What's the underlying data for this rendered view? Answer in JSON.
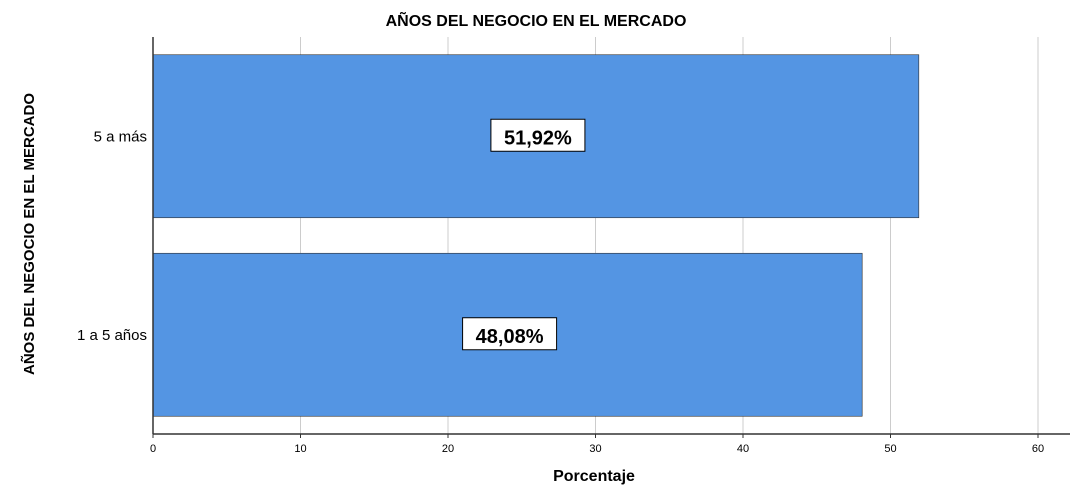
{
  "chart_data": {
    "type": "bar",
    "orientation": "horizontal",
    "title": "AÑOS DEL NEGOCIO EN EL MERCADO",
    "xlabel": "Porcentaje",
    "ylabel": "AÑOS DEL NEGOCIO EN EL MERCADO",
    "categories": [
      "5 a más",
      "1 a 5 años"
    ],
    "values": [
      51.92,
      48.08
    ],
    "data_labels": [
      "51,92%",
      "48,08%"
    ],
    "xlim": [
      0,
      62
    ],
    "xticks": [
      0,
      10,
      20,
      30,
      40,
      50,
      60
    ],
    "xtick_labels": [
      "0",
      "10",
      "20",
      "30",
      "40",
      "50",
      "60"
    ],
    "grid": "vertical",
    "bar_color": "#5495e3",
    "grid_color": "#cccccc",
    "legend": "none"
  }
}
